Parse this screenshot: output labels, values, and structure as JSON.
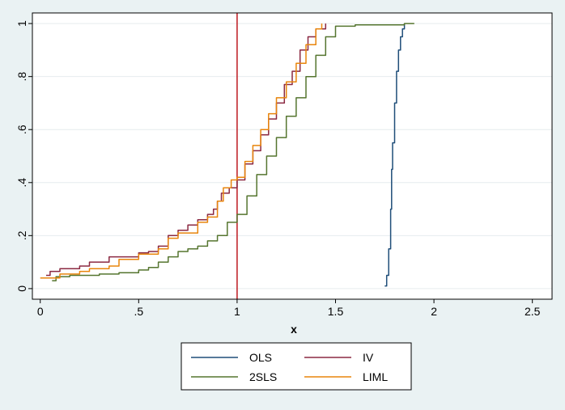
{
  "chart_data": {
    "type": "line",
    "xlabel": "x",
    "ylabel": "",
    "xlim": [
      -0.04,
      2.6
    ],
    "ylim": [
      -0.04,
      1.04
    ],
    "xticks": [
      {
        "v": 0,
        "label": "0"
      },
      {
        "v": 0.5,
        "label": ".5"
      },
      {
        "v": 1,
        "label": "1"
      },
      {
        "v": 1.5,
        "label": "1.5"
      },
      {
        "v": 2,
        "label": "2"
      },
      {
        "v": 2.5,
        "label": "2.5"
      }
    ],
    "yticks": [
      {
        "v": 0,
        "label": "0"
      },
      {
        "v": 0.2,
        "label": ".2"
      },
      {
        "v": 0.4,
        "label": ".4"
      },
      {
        "v": 0.6,
        "label": ".6"
      },
      {
        "v": 0.8,
        "label": ".8"
      },
      {
        "v": 1,
        "label": "1"
      }
    ],
    "grid": "horizontal",
    "reference_line": {
      "x": 1,
      "color": "#c1272d"
    },
    "legend_position": "bottom",
    "series": [
      {
        "name": "OLS",
        "color": "#1f4e79",
        "points": [
          [
            1.75,
            0.01
          ],
          [
            1.76,
            0.05
          ],
          [
            1.77,
            0.15
          ],
          [
            1.78,
            0.3
          ],
          [
            1.785,
            0.45
          ],
          [
            1.79,
            0.55
          ],
          [
            1.8,
            0.7
          ],
          [
            1.81,
            0.82
          ],
          [
            1.82,
            0.9
          ],
          [
            1.83,
            0.95
          ],
          [
            1.84,
            0.98
          ],
          [
            1.85,
            1.0
          ]
        ]
      },
      {
        "name": "IV",
        "color": "#8b2942",
        "points": [
          [
            0.03,
            0.05
          ],
          [
            0.05,
            0.065
          ],
          [
            0.1,
            0.075
          ],
          [
            0.2,
            0.085
          ],
          [
            0.25,
            0.1
          ],
          [
            0.35,
            0.12
          ],
          [
            0.5,
            0.135
          ],
          [
            0.55,
            0.14
          ],
          [
            0.6,
            0.16
          ],
          [
            0.65,
            0.2
          ],
          [
            0.7,
            0.22
          ],
          [
            0.75,
            0.24
          ],
          [
            0.8,
            0.26
          ],
          [
            0.85,
            0.28
          ],
          [
            0.88,
            0.3
          ],
          [
            0.9,
            0.33
          ],
          [
            0.92,
            0.36
          ],
          [
            0.96,
            0.38
          ],
          [
            1.0,
            0.41
          ],
          [
            1.04,
            0.47
          ],
          [
            1.08,
            0.52
          ],
          [
            1.12,
            0.58
          ],
          [
            1.16,
            0.64
          ],
          [
            1.2,
            0.7
          ],
          [
            1.24,
            0.77
          ],
          [
            1.28,
            0.82
          ],
          [
            1.32,
            0.9
          ],
          [
            1.36,
            0.95
          ],
          [
            1.4,
            0.98
          ],
          [
            1.45,
            1.0
          ]
        ]
      },
      {
        "name": "2SLS",
        "color": "#55752f",
        "points": [
          [
            0.06,
            0.03
          ],
          [
            0.08,
            0.045
          ],
          [
            0.15,
            0.05
          ],
          [
            0.3,
            0.055
          ],
          [
            0.4,
            0.06
          ],
          [
            0.5,
            0.07
          ],
          [
            0.55,
            0.08
          ],
          [
            0.6,
            0.1
          ],
          [
            0.65,
            0.12
          ],
          [
            0.7,
            0.14
          ],
          [
            0.75,
            0.15
          ],
          [
            0.8,
            0.16
          ],
          [
            0.85,
            0.18
          ],
          [
            0.9,
            0.2
          ],
          [
            0.95,
            0.25
          ],
          [
            1.0,
            0.28
          ],
          [
            1.05,
            0.35
          ],
          [
            1.1,
            0.43
          ],
          [
            1.15,
            0.5
          ],
          [
            1.2,
            0.57
          ],
          [
            1.25,
            0.65
          ],
          [
            1.3,
            0.72
          ],
          [
            1.35,
            0.8
          ],
          [
            1.4,
            0.88
          ],
          [
            1.45,
            0.95
          ],
          [
            1.5,
            0.99
          ],
          [
            1.6,
            0.995
          ],
          [
            1.85,
            1.0
          ],
          [
            1.9,
            1.0
          ]
        ]
      },
      {
        "name": "LIML",
        "color": "#e8850c",
        "points": [
          [
            0.0,
            0.04
          ],
          [
            0.1,
            0.055
          ],
          [
            0.2,
            0.065
          ],
          [
            0.25,
            0.075
          ],
          [
            0.35,
            0.085
          ],
          [
            0.4,
            0.11
          ],
          [
            0.5,
            0.13
          ],
          [
            0.6,
            0.15
          ],
          [
            0.65,
            0.19
          ],
          [
            0.7,
            0.21
          ],
          [
            0.8,
            0.25
          ],
          [
            0.85,
            0.27
          ],
          [
            0.9,
            0.33
          ],
          [
            0.93,
            0.38
          ],
          [
            0.97,
            0.41
          ],
          [
            1.0,
            0.42
          ],
          [
            1.04,
            0.48
          ],
          [
            1.08,
            0.54
          ],
          [
            1.12,
            0.6
          ],
          [
            1.16,
            0.66
          ],
          [
            1.2,
            0.72
          ],
          [
            1.25,
            0.78
          ],
          [
            1.3,
            0.85
          ],
          [
            1.35,
            0.92
          ],
          [
            1.4,
            0.98
          ],
          [
            1.43,
            1.0
          ]
        ]
      }
    ]
  }
}
